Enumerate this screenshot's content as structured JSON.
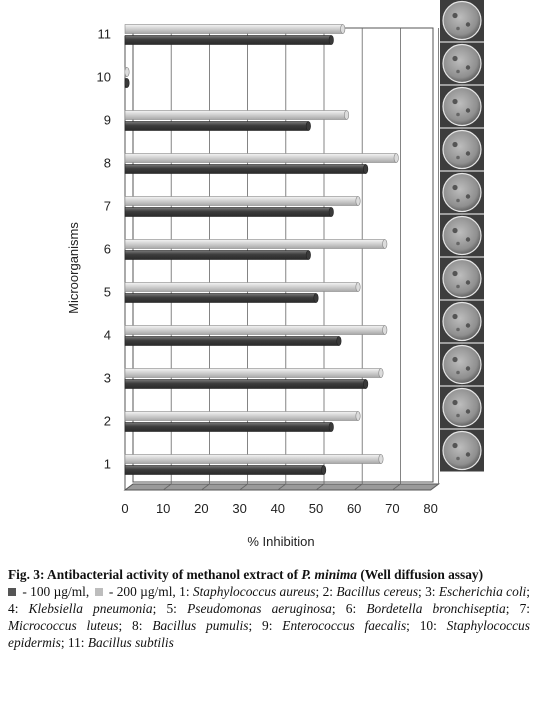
{
  "chart_data": {
    "type": "bar",
    "orientation": "horizontal",
    "categories": [
      "1",
      "2",
      "3",
      "4",
      "5",
      "6",
      "7",
      "8",
      "9",
      "10",
      "11"
    ],
    "series": [
      {
        "name": "100 µg/ml",
        "color": "#4a4a4a",
        "values": [
          52,
          54,
          63,
          56,
          50,
          48,
          54,
          63,
          48,
          0,
          54
        ]
      },
      {
        "name": "200 µg/ml",
        "color": "#c8c8c8",
        "values": [
          67,
          61,
          67,
          68,
          61,
          68,
          61,
          71,
          58,
          0,
          57
        ]
      }
    ],
    "xlabel": "% Inhibition",
    "ylabel": "Microorganisms",
    "xlim": [
      0,
      80
    ],
    "xticks": [
      "0",
      "10",
      "20",
      "30",
      "40",
      "50",
      "60",
      "70",
      "80"
    ],
    "grid": "vertical",
    "plate_images": 11
  },
  "caption": {
    "fig_label": "Fig. 3: Antibacterial activity of methanol extract of ",
    "species": "P. minima",
    "title_rest": " (Well diffusion assay)",
    "legend_1": " - 100 µg/ml, ",
    "legend_2": " - 200 µg/ml, ",
    "organisms": [
      {
        "num": "1: ",
        "name": "Staphylococcus aureus",
        "sep": "; "
      },
      {
        "num": "2: ",
        "name": "Bacillus cereus",
        "sep": "; "
      },
      {
        "num": "3: ",
        "name": "Escherichia coli",
        "sep": "; "
      },
      {
        "num": "4: ",
        "name": "Klebsiella pneumonia",
        "sep": "; "
      },
      {
        "num": "5: ",
        "name": "Pseudomonas aeruginosa",
        "sep": "; "
      },
      {
        "num": "6: ",
        "name": "Bordetella bronchiseptia",
        "sep": "; "
      },
      {
        "num": "7: ",
        "name": "Micrococcus luteus",
        "sep": "; "
      },
      {
        "num": "8: ",
        "name": "Bacillus pumulis",
        "sep": "; "
      },
      {
        "num": "9: ",
        "name": "Enterococcus faecalis",
        "sep": "; "
      },
      {
        "num": "10: ",
        "name": "Staphylococcus epidermis",
        "sep": "; "
      },
      {
        "num": "11: ",
        "name": "Bacillus subtilis",
        "sep": ""
      }
    ]
  }
}
